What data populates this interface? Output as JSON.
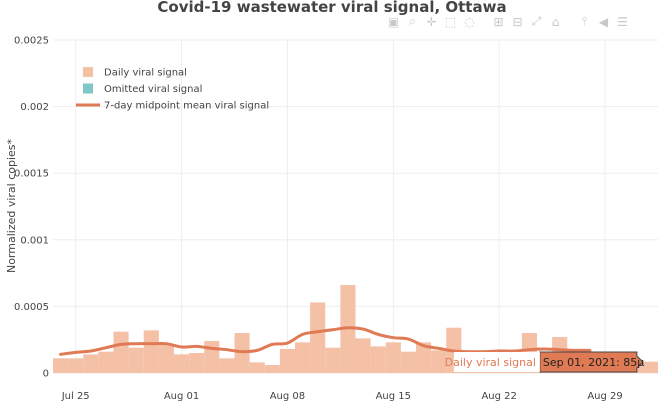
{
  "chart_data": {
    "type": "bar",
    "title": "Covid-19 wastewater viral signal, Ottawa",
    "ylabel": "Normalized viral copies*",
    "xlabel": "",
    "ylim": [
      0,
      0.0025
    ],
    "yticks": [
      {
        "value": 0,
        "label": "0"
      },
      {
        "value": 0.0005,
        "label": "0.0005"
      },
      {
        "value": 0.001,
        "label": "0.001"
      },
      {
        "value": 0.0015,
        "label": "0.0015"
      },
      {
        "value": 0.002,
        "label": "0.002"
      },
      {
        "value": 0.0025,
        "label": "0.0025"
      }
    ],
    "xticks": [
      {
        "date": "2021-07-25",
        "label": "Jul 25"
      },
      {
        "date": "2021-08-01",
        "label": "Aug 01"
      },
      {
        "date": "2021-08-08",
        "label": "Aug 08"
      },
      {
        "date": "2021-08-15",
        "label": "Aug 15"
      },
      {
        "date": "2021-08-22",
        "label": "Aug 22"
      },
      {
        "date": "2021-08-29",
        "label": "Aug 29"
      }
    ],
    "xrange": [
      "2021-07-24",
      "2021-09-02"
    ],
    "grid": true,
    "legend_position": "top-left",
    "legend": [
      {
        "label": "Daily viral signal",
        "symbol": "square",
        "color": "#f4c0a6"
      },
      {
        "label": "Omitted viral signal",
        "symbol": "square",
        "color": "#7fc6c6"
      },
      {
        "label": "7-day midpoint mean viral signal",
        "symbol": "line",
        "color": "#e07a55"
      }
    ],
    "series": [
      {
        "name": "Daily viral signal",
        "kind": "bar",
        "color": "#f4c0a6",
        "points": [
          {
            "date": "2021-07-24",
            "value": 0.00011
          },
          {
            "date": "2021-07-25",
            "value": 0.00011
          },
          {
            "date": "2021-07-26",
            "value": 0.00014
          },
          {
            "date": "2021-07-27",
            "value": 0.00016
          },
          {
            "date": "2021-07-28",
            "value": 0.00031
          },
          {
            "date": "2021-07-29",
            "value": 0.00019
          },
          {
            "date": "2021-07-30",
            "value": 0.00032
          },
          {
            "date": "2021-07-31",
            "value": 0.00022
          },
          {
            "date": "2021-08-01",
            "value": 0.00014
          },
          {
            "date": "2021-08-02",
            "value": 0.00015
          },
          {
            "date": "2021-08-03",
            "value": 0.00024
          },
          {
            "date": "2021-08-04",
            "value": 0.00011
          },
          {
            "date": "2021-08-05",
            "value": 0.0003
          },
          {
            "date": "2021-08-06",
            "value": 8e-05
          },
          {
            "date": "2021-08-07",
            "value": 6e-05
          },
          {
            "date": "2021-08-08",
            "value": 0.00018
          },
          {
            "date": "2021-08-09",
            "value": 0.00023
          },
          {
            "date": "2021-08-10",
            "value": 0.00053
          },
          {
            "date": "2021-08-11",
            "value": 0.00019
          },
          {
            "date": "2021-08-12",
            "value": 0.00066
          },
          {
            "date": "2021-08-13",
            "value": 0.00026
          },
          {
            "date": "2021-08-14",
            "value": 0.0002
          },
          {
            "date": "2021-08-15",
            "value": 0.00023
          },
          {
            "date": "2021-08-16",
            "value": 0.00016
          },
          {
            "date": "2021-08-17",
            "value": 0.00023
          },
          {
            "date": "2021-08-18",
            "value": 0.00017
          },
          {
            "date": "2021-08-19",
            "value": 0.00034
          },
          {
            "date": "2021-08-20",
            "value": 0.00014
          },
          {
            "date": "2021-08-21",
            "value": 0.00017
          },
          {
            "date": "2021-08-22",
            "value": 0.00012
          },
          {
            "date": "2021-08-23",
            "value": 0.00014
          },
          {
            "date": "2021-08-24",
            "value": 0.0003
          },
          {
            "date": "2021-08-25",
            "value": 0.00011
          },
          {
            "date": "2021-08-26",
            "value": 0.00027
          },
          {
            "date": "2021-08-27",
            "value": 0.00013
          },
          {
            "date": "2021-08-28",
            "value": 0.00014
          },
          {
            "date": "2021-08-29",
            "value": 0.00012
          },
          {
            "date": "2021-08-30",
            "value": 0.00011
          },
          {
            "date": "2021-08-31",
            "value": 0.0001
          },
          {
            "date": "2021-09-01",
            "value": 8.5e-05
          }
        ]
      },
      {
        "name": "7-day midpoint mean viral signal",
        "kind": "line",
        "color": "#e07a55",
        "points": [
          {
            "date": "2021-07-24",
            "value": 0.00014
          },
          {
            "date": "2021-07-25",
            "value": 0.000155
          },
          {
            "date": "2021-07-26",
            "value": 0.000165
          },
          {
            "date": "2021-07-27",
            "value": 0.00019
          },
          {
            "date": "2021-07-28",
            "value": 0.000215
          },
          {
            "date": "2021-07-29",
            "value": 0.00022
          },
          {
            "date": "2021-07-30",
            "value": 0.00022
          },
          {
            "date": "2021-07-31",
            "value": 0.00022
          },
          {
            "date": "2021-08-01",
            "value": 0.000195
          },
          {
            "date": "2021-08-02",
            "value": 0.0002
          },
          {
            "date": "2021-08-03",
            "value": 0.000185
          },
          {
            "date": "2021-08-04",
            "value": 0.000175
          },
          {
            "date": "2021-08-05",
            "value": 0.00016
          },
          {
            "date": "2021-08-06",
            "value": 0.00017
          },
          {
            "date": "2021-08-07",
            "value": 0.000215
          },
          {
            "date": "2021-08-08",
            "value": 0.000225
          },
          {
            "date": "2021-08-09",
            "value": 0.00029
          },
          {
            "date": "2021-08-10",
            "value": 0.00031
          },
          {
            "date": "2021-08-11",
            "value": 0.000325
          },
          {
            "date": "2021-08-12",
            "value": 0.00034
          },
          {
            "date": "2021-08-13",
            "value": 0.00033
          },
          {
            "date": "2021-08-14",
            "value": 0.00029
          },
          {
            "date": "2021-08-15",
            "value": 0.000265
          },
          {
            "date": "2021-08-16",
            "value": 0.000255
          },
          {
            "date": "2021-08-17",
            "value": 0.000205
          },
          {
            "date": "2021-08-18",
            "value": 0.000185
          },
          {
            "date": "2021-08-19",
            "value": 0.000165
          },
          {
            "date": "2021-08-20",
            "value": 0.00016
          },
          {
            "date": "2021-08-21",
            "value": 0.00016
          },
          {
            "date": "2021-08-22",
            "value": 0.000165
          },
          {
            "date": "2021-08-23",
            "value": 0.000165
          },
          {
            "date": "2021-08-24",
            "value": 0.000175
          },
          {
            "date": "2021-08-25",
            "value": 0.00018
          },
          {
            "date": "2021-08-26",
            "value": 0.000175
          },
          {
            "date": "2021-08-27",
            "value": 0.00017
          },
          {
            "date": "2021-08-28",
            "value": 0.00017
          }
        ]
      }
    ],
    "hover": {
      "series_label": "Daily viral signal",
      "date": "2021-09-01",
      "value": 8.5e-05,
      "label": "Sep 01, 2021: 85μ"
    }
  },
  "modebar": {
    "icons": [
      "camera-icon",
      "zoom-icon",
      "pan-icon",
      "box-select-icon",
      "lasso-icon",
      "zoom-in-icon",
      "zoom-out-icon",
      "autoscale-icon",
      "home-icon",
      "spike-lines-icon",
      "hover-closest-icon",
      "hover-compare-icon"
    ]
  }
}
